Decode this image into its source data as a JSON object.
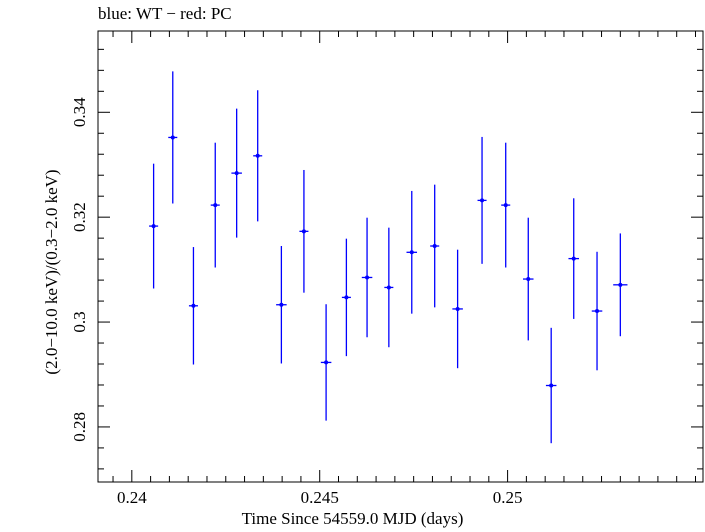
{
  "chart_data": {
    "type": "scatter",
    "title": "blue: WT − red: PC",
    "xlabel": "Time Since 54559.0 MJD (days)",
    "ylabel": "(2.0−10.0 keV)/(0.3−2.0 keV)",
    "xlim": [
      0.2391,
      0.2552
    ],
    "ylim": [
      0.2695,
      0.3555
    ],
    "xticks": [
      0.24,
      0.245,
      0.25
    ],
    "xtick_labels": [
      "0.24",
      "0.245",
      "0.25"
    ],
    "yticks": [
      0.28,
      0.3,
      0.32,
      0.34
    ],
    "ytick_labels": [
      "0.28",
      "0.3",
      "0.32",
      "0.34"
    ],
    "grid": false,
    "series": [
      {
        "color": "#0000ff",
        "x": [
          0.24058,
          0.24109,
          0.24164,
          0.24222,
          0.24279,
          0.24335,
          0.24398,
          0.24458,
          0.24517,
          0.24571,
          0.24626,
          0.24684,
          0.24745,
          0.24806,
          0.24867,
          0.24932,
          0.24995,
          0.25055,
          0.25116,
          0.25176,
          0.25238,
          0.253
        ],
        "y": [
          0.3183,
          0.3352,
          0.3031,
          0.3223,
          0.3284,
          0.3317,
          0.3033,
          0.3173,
          0.2923,
          0.3047,
          0.3085,
          0.3066,
          0.3133,
          0.3145,
          0.3025,
          0.3232,
          0.3223,
          0.3082,
          0.2879,
          0.3121,
          0.3021,
          0.3071
        ],
        "xerr": [
          0.00012,
          0.00012,
          0.00012,
          0.00012,
          0.00014,
          0.00012,
          0.00014,
          0.00012,
          0.00014,
          0.00012,
          0.00014,
          0.00012,
          0.00014,
          0.00012,
          0.00014,
          0.00012,
          0.00012,
          0.00014,
          0.00014,
          0.00014,
          0.00014,
          0.00019
        ],
        "yerr": [
          0.0119,
          0.0126,
          0.0112,
          0.0119,
          0.0123,
          0.0125,
          0.0112,
          0.0117,
          0.0111,
          0.0112,
          0.0114,
          0.0114,
          0.0117,
          0.0117,
          0.0113,
          0.0121,
          0.0119,
          0.0117,
          0.011,
          0.0115,
          0.0113,
          0.0098
        ]
      }
    ]
  }
}
